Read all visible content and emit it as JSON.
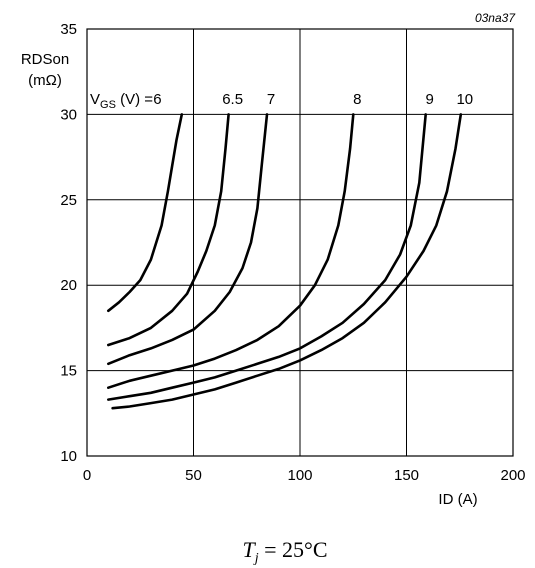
{
  "chart_data": {
    "type": "line",
    "reference": "03na37",
    "ylabel_line1": "RDSon",
    "ylabel_line2": "(mΩ)",
    "xlabel": "ID (A)",
    "xlim": [
      0,
      200
    ],
    "ylim": [
      10,
      35
    ],
    "x_ticks": [
      "0",
      "50",
      "100",
      "150",
      "200"
    ],
    "y_ticks": [
      "10",
      "15",
      "20",
      "25",
      "30",
      "35"
    ],
    "grid": true,
    "vgs_prefix": "V",
    "vgs_sub": "GS",
    "vgs_suffix": " (V) = ",
    "condition": "T_j = 25°C",
    "condition_T": "T",
    "condition_j": "j",
    "condition_rest": " = 25°C",
    "series": [
      {
        "label": "6",
        "x": [
          10,
          15,
          20,
          25,
          30,
          35,
          38,
          40,
          42,
          44.5
        ],
        "y": [
          18.5,
          19.0,
          19.6,
          20.3,
          21.5,
          23.5,
          25.5,
          27.0,
          28.5,
          30.0
        ]
      },
      {
        "label": "6.5",
        "x": [
          10,
          20,
          30,
          40,
          47,
          52,
          56,
          60,
          63,
          65,
          66.5
        ],
        "y": [
          16.5,
          16.9,
          17.5,
          18.5,
          19.5,
          20.8,
          22.0,
          23.5,
          25.5,
          28.0,
          30.0
        ]
      },
      {
        "label": "7",
        "x": [
          10,
          20,
          30,
          40,
          50,
          60,
          67,
          73,
          77,
          80,
          82,
          84.5
        ],
        "y": [
          15.4,
          15.9,
          16.3,
          16.8,
          17.4,
          18.5,
          19.6,
          21.0,
          22.5,
          24.5,
          27.0,
          30.0
        ]
      },
      {
        "label": "8",
        "x": [
          10,
          20,
          30,
          40,
          50,
          60,
          70,
          80,
          90,
          100,
          107,
          113,
          118,
          121,
          123.5,
          125
        ],
        "y": [
          14.0,
          14.4,
          14.7,
          15.0,
          15.3,
          15.7,
          16.2,
          16.8,
          17.6,
          18.8,
          20.0,
          21.5,
          23.5,
          25.5,
          28.0,
          30.0
        ]
      },
      {
        "label": "9",
        "x": [
          10,
          20,
          30,
          40,
          50,
          60,
          70,
          80,
          90,
          100,
          110,
          120,
          130,
          140,
          147,
          152,
          156,
          159
        ],
        "y": [
          13.3,
          13.5,
          13.7,
          14.0,
          14.3,
          14.6,
          15.0,
          15.4,
          15.8,
          16.3,
          17.0,
          17.8,
          18.9,
          20.3,
          21.8,
          23.5,
          26.0,
          30.0
        ]
      },
      {
        "label": "10",
        "x": [
          12,
          20,
          30,
          40,
          50,
          60,
          70,
          80,
          90,
          100,
          110,
          120,
          130,
          140,
          150,
          158,
          164,
          169,
          173,
          175.5
        ],
        "y": [
          12.8,
          12.9,
          13.1,
          13.3,
          13.6,
          13.9,
          14.3,
          14.7,
          15.1,
          15.6,
          16.2,
          16.9,
          17.8,
          19.0,
          20.5,
          22.0,
          23.5,
          25.5,
          28.0,
          30.0
        ]
      }
    ]
  }
}
